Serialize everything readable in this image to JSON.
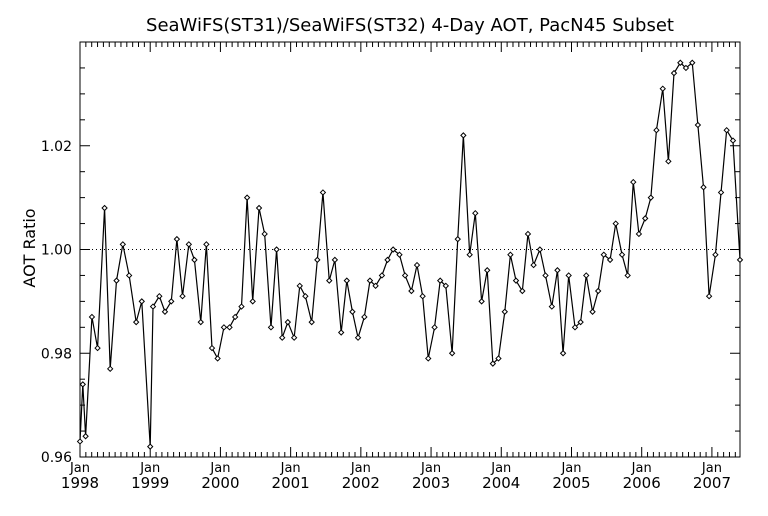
{
  "chart_data": {
    "type": "line",
    "title": "SeaWiFS(ST31)/SeaWiFS(ST32) 4-Day AOT, PacN45 Subset",
    "xlabel": "",
    "ylabel": "AOT Ratio",
    "xlim": [
      1998.0,
      2007.4
    ],
    "ylim": [
      0.96,
      1.04
    ],
    "yticks": [
      0.96,
      0.98,
      1.0,
      1.02
    ],
    "ytick_labels": [
      "0.96",
      "0.98",
      "1.00",
      "1.02"
    ],
    "xticks": [
      1998,
      1999,
      2000,
      2001,
      2002,
      2003,
      2004,
      2005,
      2006,
      2007
    ],
    "xtick_month_labels": [
      "Jan",
      "Jan",
      "Jan",
      "Jan",
      "Jan",
      "Jan",
      "Jan",
      "Jan",
      "Jan",
      "Jan"
    ],
    "xtick_year_labels": [
      "1998",
      "1999",
      "2000",
      "2001",
      "2002",
      "2003",
      "2004",
      "2005",
      "2006",
      "2007"
    ],
    "reference_line": 1.0,
    "grid": false,
    "legend": "none",
    "colors": {
      "line": "#000000",
      "axes": "#000000",
      "reference": "#000000"
    },
    "series": [
      {
        "values": [
          [
            1998.0,
            0.963
          ],
          [
            1998.04,
            0.974
          ],
          [
            1998.08,
            0.964
          ],
          [
            1998.17,
            0.987
          ],
          [
            1998.25,
            0.981
          ],
          [
            1998.35,
            1.008
          ],
          [
            1998.43,
            0.977
          ],
          [
            1998.52,
            0.994
          ],
          [
            1998.61,
            1.001
          ],
          [
            1998.7,
            0.995
          ],
          [
            1998.8,
            0.986
          ],
          [
            1998.88,
            0.99
          ],
          [
            1999.0,
            0.962
          ],
          [
            1999.04,
            0.989
          ],
          [
            1999.13,
            0.991
          ],
          [
            1999.21,
            0.988
          ],
          [
            1999.3,
            0.99
          ],
          [
            1999.38,
            1.002
          ],
          [
            1999.46,
            0.991
          ],
          [
            1999.55,
            1.001
          ],
          [
            1999.63,
            0.998
          ],
          [
            1999.72,
            0.986
          ],
          [
            1999.8,
            1.001
          ],
          [
            1999.88,
            0.981
          ],
          [
            1999.96,
            0.979
          ],
          [
            2000.05,
            0.985
          ],
          [
            2000.13,
            0.985
          ],
          [
            2000.21,
            0.987
          ],
          [
            2000.3,
            0.989
          ],
          [
            2000.38,
            1.01
          ],
          [
            2000.46,
            0.99
          ],
          [
            2000.55,
            1.008
          ],
          [
            2000.63,
            1.003
          ],
          [
            2000.72,
            0.985
          ],
          [
            2000.8,
            1.0
          ],
          [
            2000.88,
            0.983
          ],
          [
            2000.96,
            0.986
          ],
          [
            2001.05,
            0.983
          ],
          [
            2001.13,
            0.993
          ],
          [
            2001.21,
            0.991
          ],
          [
            2001.3,
            0.986
          ],
          [
            2001.38,
            0.998
          ],
          [
            2001.46,
            1.011
          ],
          [
            2001.55,
            0.994
          ],
          [
            2001.63,
            0.998
          ],
          [
            2001.72,
            0.984
          ],
          [
            2001.8,
            0.994
          ],
          [
            2001.88,
            0.988
          ],
          [
            2001.96,
            0.983
          ],
          [
            2002.05,
            0.987
          ],
          [
            2002.13,
            0.994
          ],
          [
            2002.21,
            0.993
          ],
          [
            2002.3,
            0.995
          ],
          [
            2002.38,
            0.998
          ],
          [
            2002.46,
            1.0
          ],
          [
            2002.55,
            0.999
          ],
          [
            2002.63,
            0.995
          ],
          [
            2002.72,
            0.992
          ],
          [
            2002.8,
            0.997
          ],
          [
            2002.88,
            0.991
          ],
          [
            2002.96,
            0.979
          ],
          [
            2003.05,
            0.985
          ],
          [
            2003.13,
            0.994
          ],
          [
            2003.21,
            0.993
          ],
          [
            2003.3,
            0.98
          ],
          [
            2003.38,
            1.002
          ],
          [
            2003.46,
            1.022
          ],
          [
            2003.55,
            0.999
          ],
          [
            2003.63,
            1.007
          ],
          [
            2003.72,
            0.99
          ],
          [
            2003.8,
            0.996
          ],
          [
            2003.88,
            0.978
          ],
          [
            2003.96,
            0.979
          ],
          [
            2004.05,
            0.988
          ],
          [
            2004.13,
            0.999
          ],
          [
            2004.21,
            0.994
          ],
          [
            2004.3,
            0.992
          ],
          [
            2004.38,
            1.003
          ],
          [
            2004.46,
            0.997
          ],
          [
            2004.55,
            1.0
          ],
          [
            2004.63,
            0.995
          ],
          [
            2004.72,
            0.989
          ],
          [
            2004.8,
            0.996
          ],
          [
            2004.88,
            0.98
          ],
          [
            2004.96,
            0.995
          ],
          [
            2005.05,
            0.985
          ],
          [
            2005.13,
            0.986
          ],
          [
            2005.21,
            0.995
          ],
          [
            2005.3,
            0.988
          ],
          [
            2005.38,
            0.992
          ],
          [
            2005.46,
            0.999
          ],
          [
            2005.55,
            0.998
          ],
          [
            2005.63,
            1.005
          ],
          [
            2005.72,
            0.999
          ],
          [
            2005.8,
            0.995
          ],
          [
            2005.88,
            1.013
          ],
          [
            2005.96,
            1.003
          ],
          [
            2006.05,
            1.006
          ],
          [
            2006.13,
            1.01
          ],
          [
            2006.21,
            1.023
          ],
          [
            2006.3,
            1.031
          ],
          [
            2006.38,
            1.017
          ],
          [
            2006.46,
            1.034
          ],
          [
            2006.55,
            1.036
          ],
          [
            2006.63,
            1.035
          ],
          [
            2006.72,
            1.036
          ],
          [
            2006.8,
            1.024
          ],
          [
            2006.88,
            1.012
          ],
          [
            2006.96,
            0.991
          ],
          [
            2007.05,
            0.999
          ],
          [
            2007.13,
            1.011
          ],
          [
            2007.21,
            1.023
          ],
          [
            2007.3,
            1.021
          ],
          [
            2007.4,
            0.998
          ]
        ]
      }
    ]
  }
}
